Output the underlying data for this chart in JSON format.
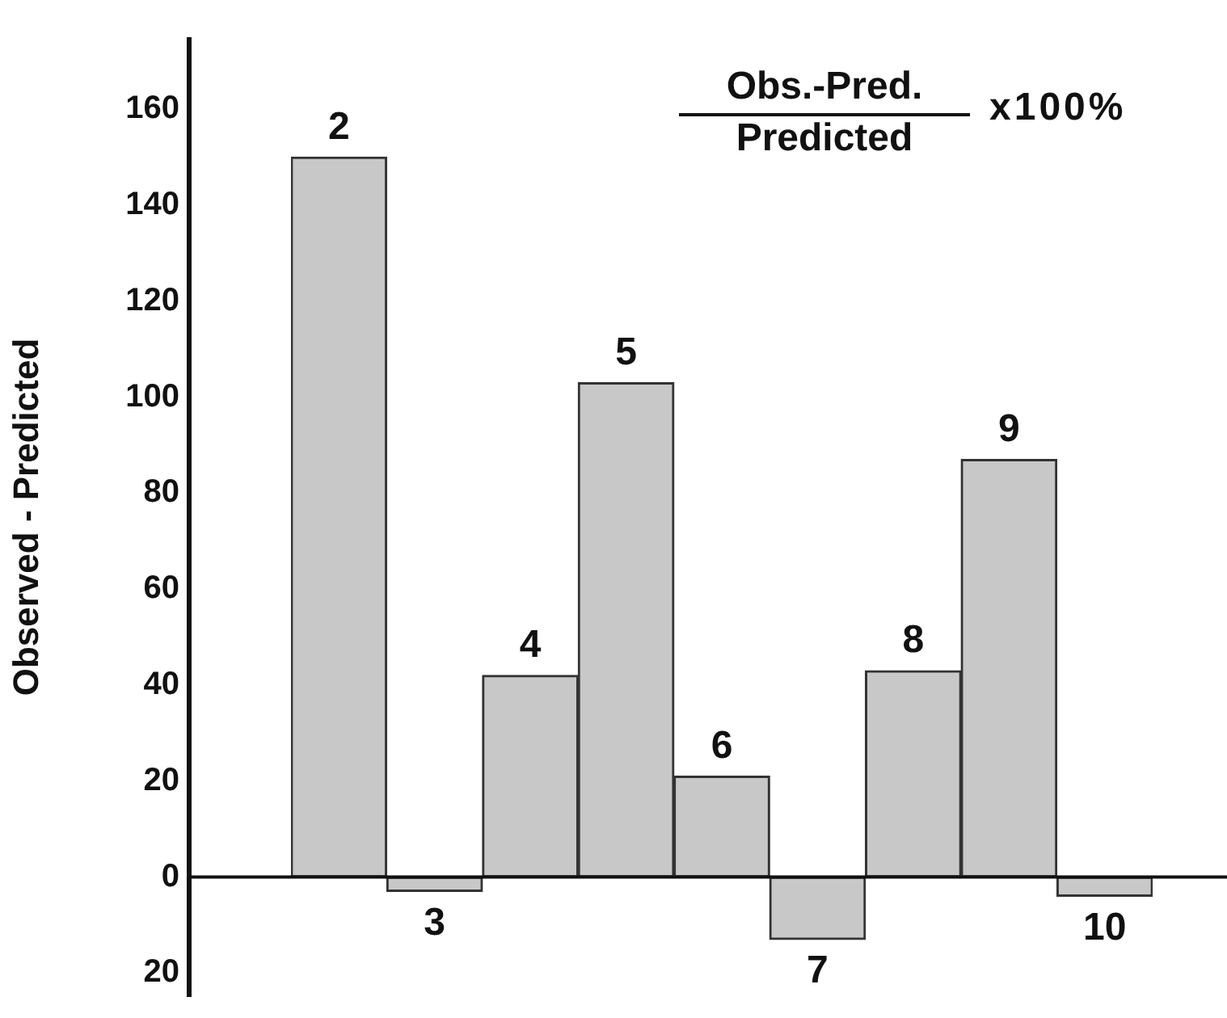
{
  "chart_data": {
    "type": "bar",
    "title": "Obs.-Pred.",
    "subtitle": "Predicted",
    "annotations": [
      "x100%"
    ],
    "ylabel": "Observed - Predicted",
    "categories": [
      "2",
      "3",
      "4",
      "5",
      "6",
      "7",
      "8",
      "9",
      "10"
    ],
    "values": [
      150,
      -3,
      42,
      103,
      21,
      -13,
      43,
      87,
      -4
    ],
    "color": "#c8c8c8",
    "ylim": [
      -25,
      175
    ],
    "yticks": [
      {
        "value": -20,
        "label": "20"
      },
      0,
      20,
      40,
      60,
      80,
      100,
      120,
      140,
      160
    ]
  }
}
